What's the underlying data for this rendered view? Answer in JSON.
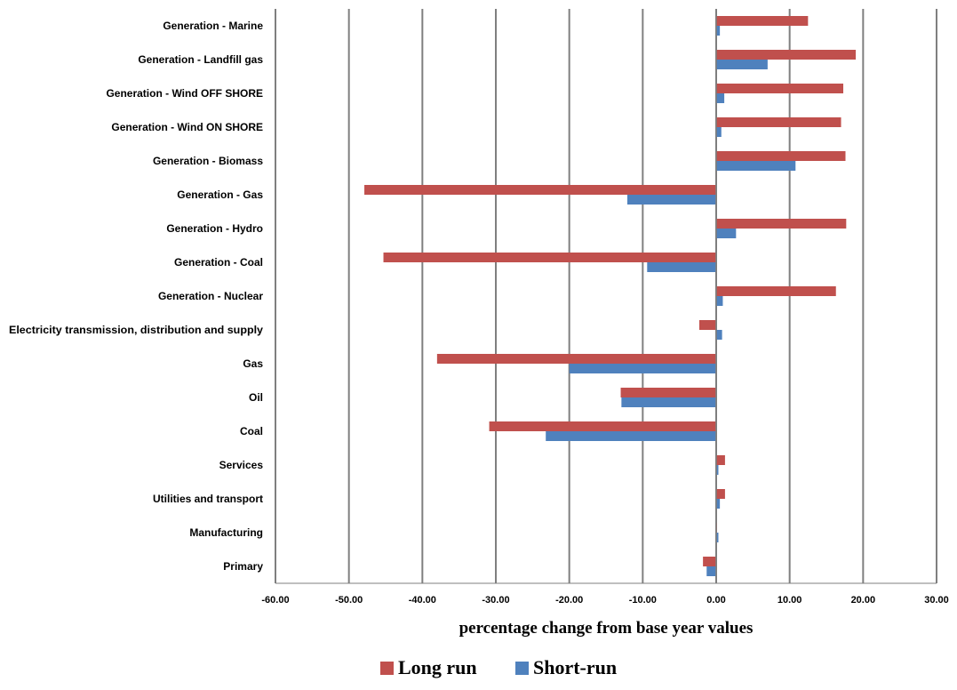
{
  "chart_data": {
    "type": "bar",
    "orientation": "horizontal",
    "categories": [
      "Generation - Marine",
      "Generation - Landfill gas",
      "Generation - Wind OFF SHORE",
      "Generation - Wind ON SHORE",
      "Generation - Biomass",
      "Generation - Gas",
      "Generation - Hydro",
      "Generation - Coal",
      "Generation - Nuclear",
      "Electricity transmission, distribution and supply",
      "Gas",
      "Oil",
      "Coal",
      "Services",
      "Utilities and transport",
      "Manufacturing",
      "Primary"
    ],
    "series": [
      {
        "name": "Long run",
        "color": "#C0504D",
        "values": [
          12.5,
          19.0,
          17.3,
          17.0,
          17.6,
          -47.9,
          17.7,
          -45.3,
          16.3,
          -2.3,
          -38.0,
          -13.0,
          -30.9,
          1.2,
          1.2,
          0.0,
          -1.8
        ]
      },
      {
        "name": "Short-run",
        "color": "#4F81BD",
        "values": [
          0.5,
          7.0,
          1.1,
          0.7,
          10.8,
          -12.1,
          2.7,
          -9.4,
          0.9,
          0.8,
          -20.0,
          -12.9,
          -23.2,
          0.3,
          0.5,
          0.3,
          -1.3
        ]
      }
    ],
    "xlabel": "percentage change from base year values",
    "xlim": [
      -60,
      30
    ],
    "xticks": [
      -60,
      -50,
      -40,
      -30,
      -20,
      -10,
      0,
      10,
      20,
      30
    ],
    "xtick_labels": [
      "-60.00",
      "-50.00",
      "-40.00",
      "-30.00",
      "-20.00",
      "-10.00",
      "0.00",
      "10.00",
      "20.00",
      "30.00"
    ],
    "grid": "vertical",
    "legend": "bottom-center"
  }
}
